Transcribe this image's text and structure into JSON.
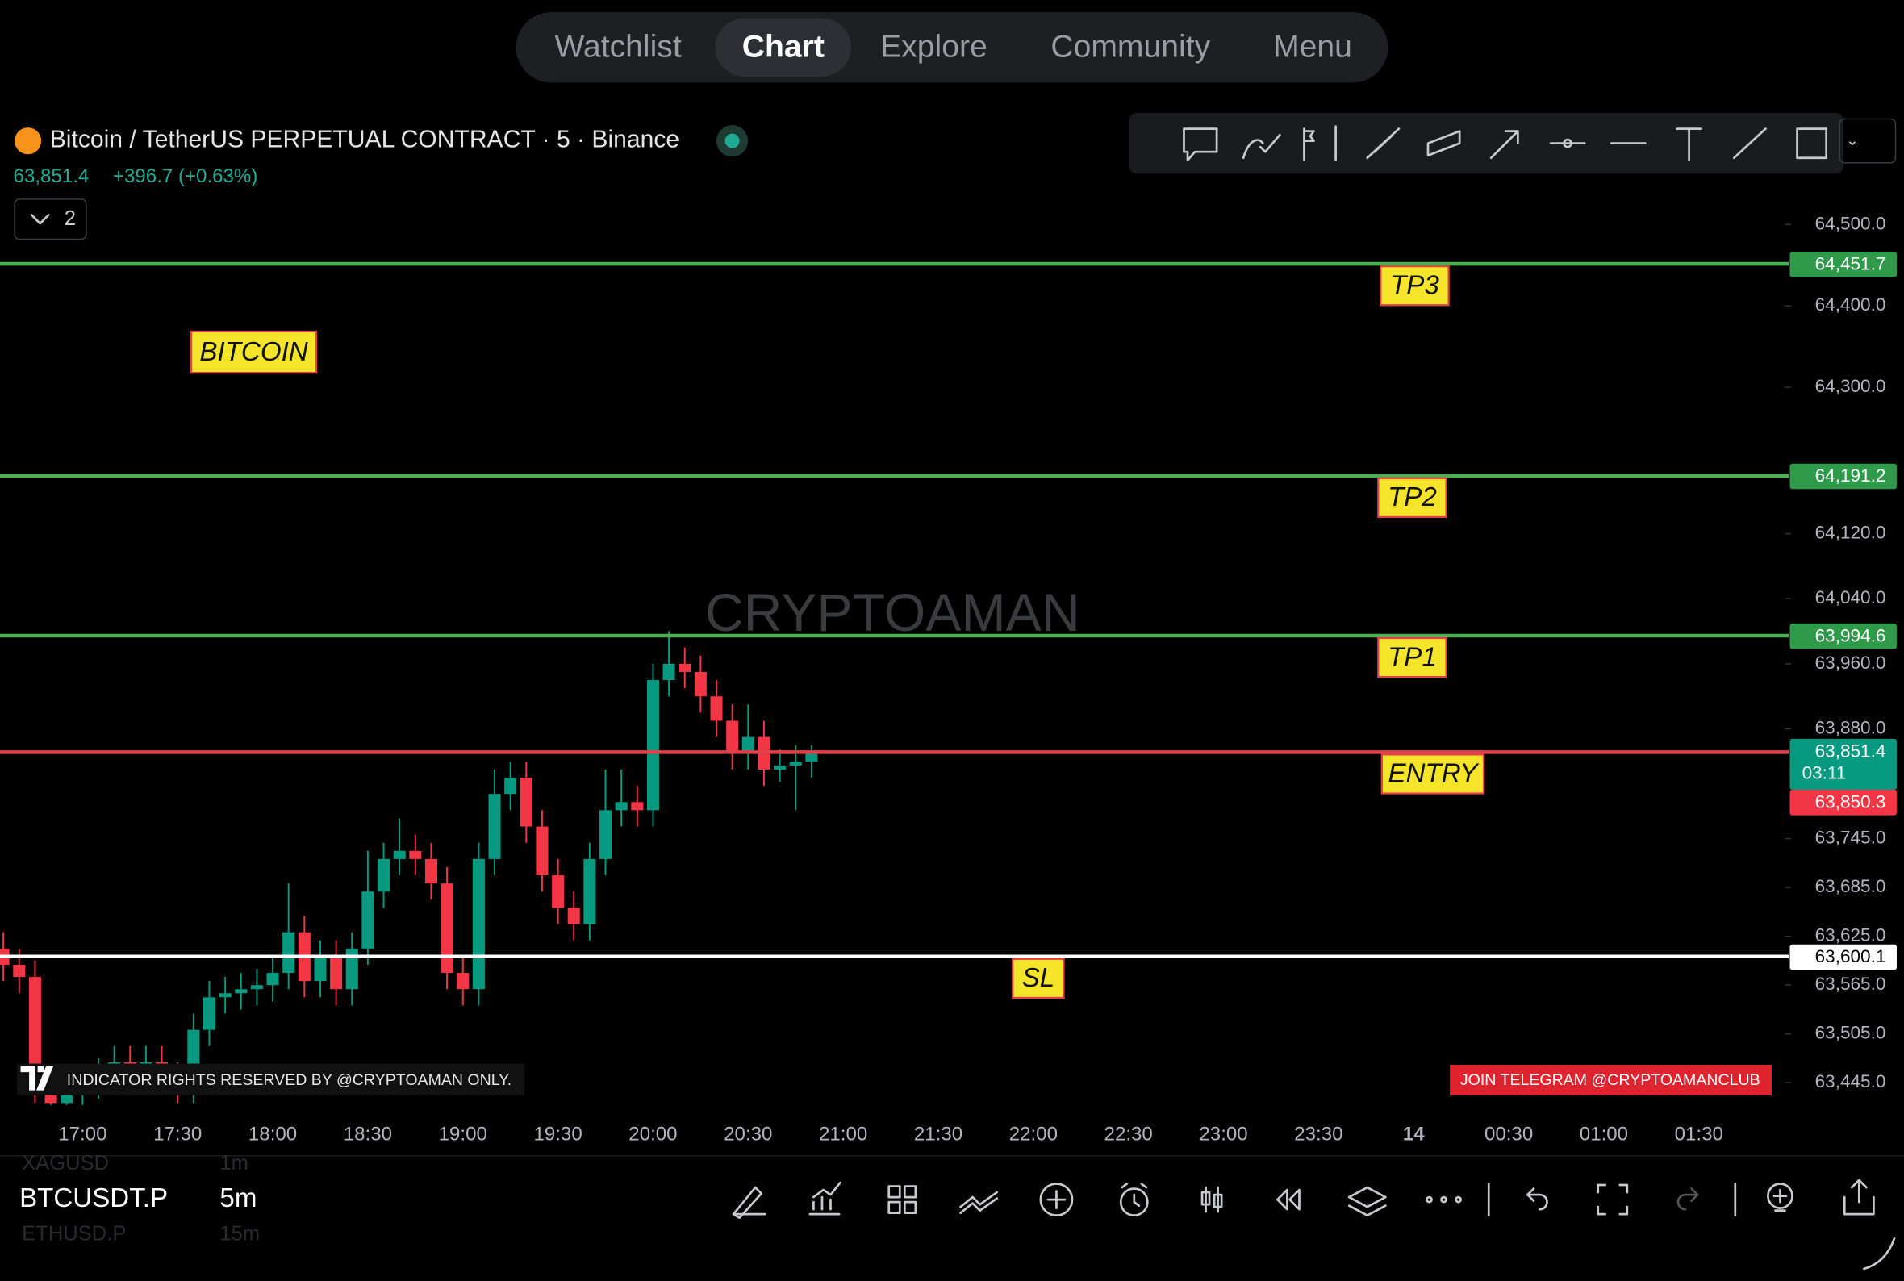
{
  "nav": {
    "tabs": [
      "Watchlist",
      "Chart",
      "Explore",
      "Community",
      "Menu"
    ]
  },
  "header": {
    "symbol_title": "Bitcoin / TetherUS PERPETUAL CONTRACT · 5 · Binance",
    "price": "63,851.4",
    "change": "+396.7 (+0.63%)",
    "collapse_count": 2
  },
  "chart_data": {
    "type": "candlestick",
    "watermark": "CRYPTOAMAN",
    "up_color": "#089981",
    "down_color": "#f23645",
    "open": [
      63610,
      63590,
      63575,
      63440,
      63420,
      63430,
      63445,
      63455,
      63470,
      63460,
      63470,
      63450,
      63440,
      63510,
      63550,
      63555,
      63560,
      63565,
      63580,
      63630,
      63570,
      63600,
      63560,
      63610,
      63680,
      63720,
      63730,
      63720,
      63690,
      63580,
      63560,
      63720,
      63800,
      63820,
      63760,
      63700,
      63660,
      63640,
      63720,
      63780,
      63790,
      63780,
      63940,
      63960,
      63950,
      63920,
      63890,
      63850,
      63870,
      63830,
      63835,
      63840
    ],
    "high": [
      63630,
      63610,
      63595,
      63460,
      63450,
      63465,
      63475,
      63490,
      63490,
      63490,
      63490,
      63470,
      63530,
      63570,
      63575,
      63580,
      63585,
      63600,
      63690,
      63650,
      63620,
      63620,
      63630,
      63730,
      63740,
      63770,
      63750,
      63740,
      63710,
      63600,
      63740,
      63830,
      63840,
      63840,
      63780,
      63720,
      63680,
      63740,
      63830,
      63830,
      63810,
      63960,
      64000,
      63980,
      63970,
      63940,
      63910,
      63910,
      63890,
      63855,
      63860,
      63860
    ],
    "low": [
      63570,
      63555,
      63420,
      63400,
      63400,
      63410,
      63425,
      63435,
      63440,
      63440,
      63430,
      63420,
      63420,
      63490,
      63530,
      63535,
      63540,
      63545,
      63560,
      63550,
      63550,
      63540,
      63540,
      63590,
      63660,
      63700,
      63700,
      63670,
      63560,
      63540,
      63540,
      63700,
      63780,
      63740,
      63680,
      63640,
      63620,
      63620,
      63700,
      63760,
      63760,
      63760,
      63920,
      63930,
      63900,
      63870,
      63830,
      63830,
      63810,
      63815,
      63780,
      63820
    ],
    "close": [
      63590,
      63575,
      63440,
      63420,
      63430,
      63445,
      63455,
      63470,
      63460,
      63470,
      63450,
      63440,
      63510,
      63550,
      63555,
      63560,
      63565,
      63580,
      63630,
      63570,
      63600,
      63560,
      63610,
      63680,
      63720,
      63730,
      63720,
      63690,
      63580,
      63560,
      63720,
      63800,
      63820,
      63760,
      63700,
      63660,
      63640,
      63720,
      63780,
      63790,
      63780,
      63940,
      63960,
      63950,
      63920,
      63890,
      63850,
      63870,
      63830,
      63835,
      63840,
      63851.4
    ],
    "ylim": [
      63358,
      64776
    ],
    "yticks": [
      {
        "value": 64500,
        "label": "64,500.0"
      },
      {
        "value": 64400,
        "label": "64,400.0"
      },
      {
        "value": 64300,
        "label": "64,300.0"
      },
      {
        "value": 64120,
        "label": "64,120.0"
      },
      {
        "value": 64040,
        "label": "64,040.0"
      },
      {
        "value": 63960,
        "label": "63,960.0"
      },
      {
        "value": 63880,
        "label": "63,880.0"
      },
      {
        "value": 63745,
        "label": "63,745.0"
      },
      {
        "value": 63685,
        "label": "63,685.0"
      },
      {
        "value": 63625,
        "label": "63,625.0"
      },
      {
        "value": 63565,
        "label": "63,565.0"
      },
      {
        "value": 63505,
        "label": "63,505.0"
      },
      {
        "value": 63445,
        "label": "63,445.0"
      }
    ],
    "xticks": [
      "17:00",
      "17:30",
      "18:00",
      "18:30",
      "19:00",
      "19:30",
      "20:00",
      "20:30",
      "21:00",
      "21:30",
      "22:00",
      "22:30",
      "23:00",
      "23:30",
      "14",
      "00:30",
      "01:00",
      "01:30"
    ],
    "levels": [
      {
        "name": "TP3",
        "value": 64451.7,
        "label": "64,451.7",
        "color": "#4caf50"
      },
      {
        "name": "TP2",
        "value": 64191.2,
        "label": "64,191.2",
        "color": "#4caf50"
      },
      {
        "name": "TP1",
        "value": 63994.6,
        "label": "63,994.6",
        "color": "#4caf50"
      },
      {
        "name": "ENTRY",
        "value": 63851.4,
        "label": "63,851.4",
        "color": "#e0404a"
      },
      {
        "name": "SL",
        "value": 63600.1,
        "label": "63,600.1",
        "color": "#ffffff"
      }
    ],
    "countdown": "03:11",
    "bid": {
      "value": 63850.3,
      "label": "63,850.3"
    },
    "annotation": "BITCOIN",
    "notice": "INDICATOR RIGHTS RESERVED BY @CRYPTOAMAN ONLY.",
    "telegram": "JOIN TELEGRAM @CRYPTOAMANCLUB"
  },
  "bottom": {
    "symbol": "BTCUSDT.P",
    "interval": "5m",
    "faded": [
      "XAGUSD",
      "1m",
      "ETHUSD.P",
      "15m"
    ]
  }
}
